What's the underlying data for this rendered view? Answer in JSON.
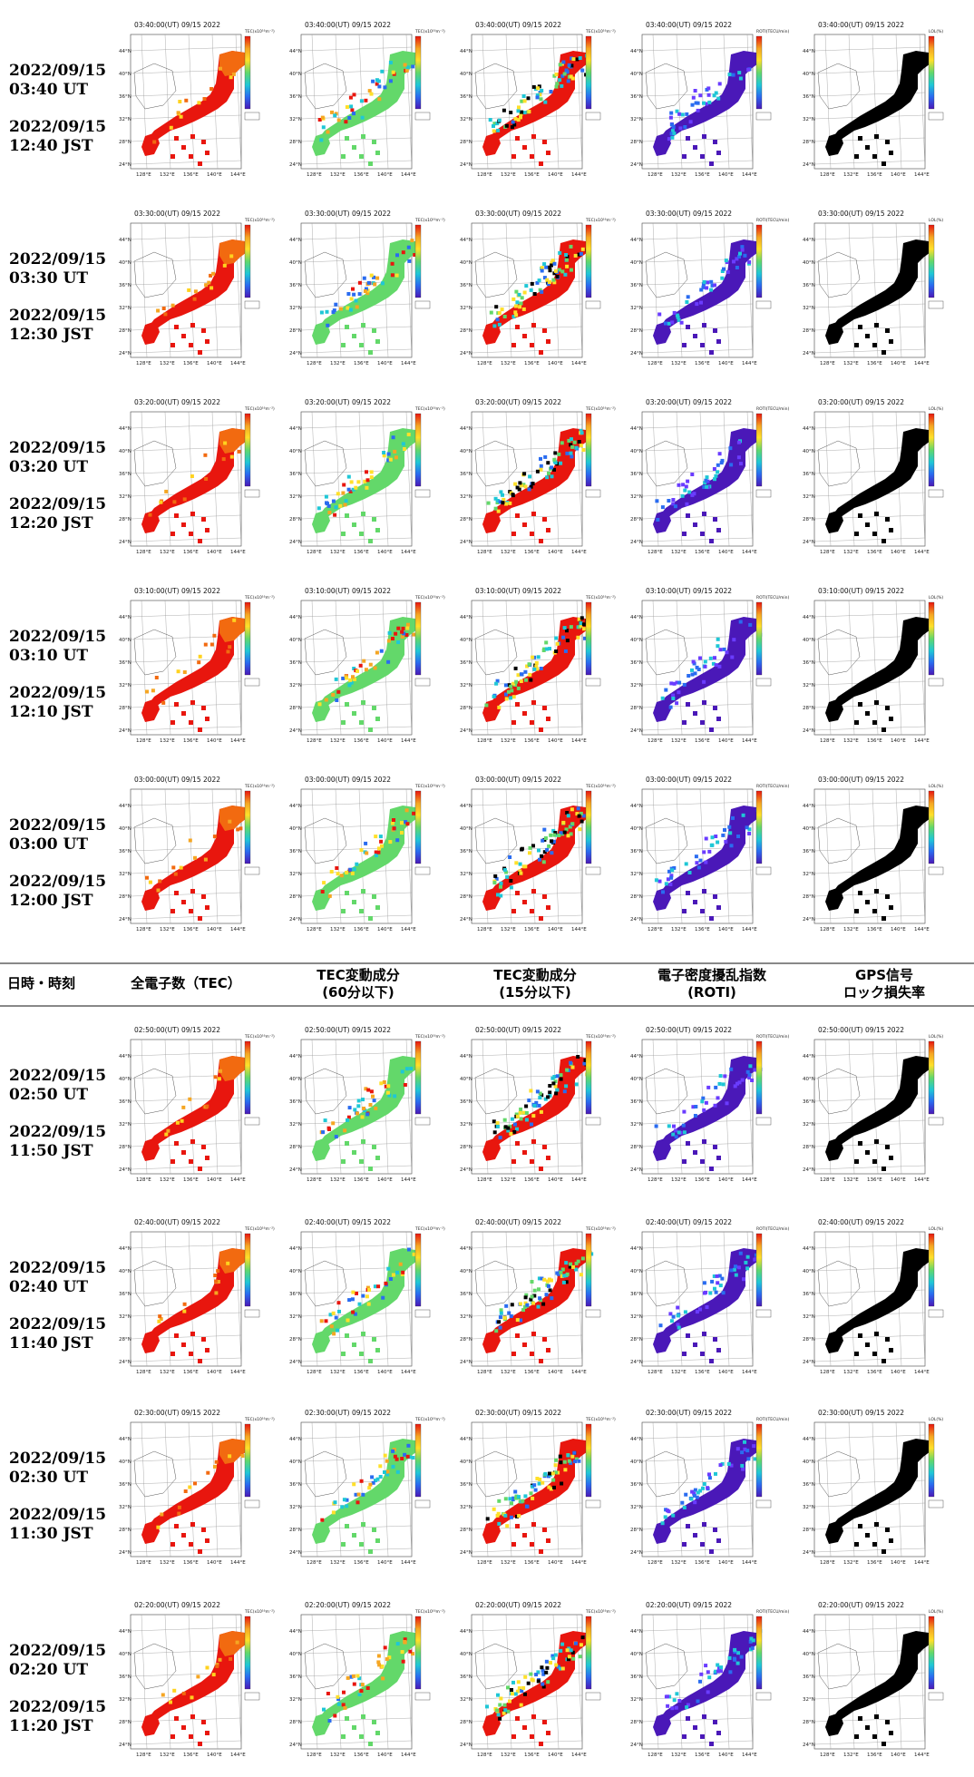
{
  "header": {
    "col0": "日時・時刻",
    "col1": "全電子数（TEC）",
    "col2_line1": "TEC変動成分",
    "col2_line2": "(60分以下)",
    "col3_line1": "TEC変動成分",
    "col3_line2": "(15分以下)",
    "col4_line1": "電子密度擾乱指数",
    "col4_line2": "(ROTI)",
    "col5_line1": "GPS信号",
    "col5_line2": "ロック損失率"
  },
  "rows": [
    {
      "ut": "2022/09/15 03:40 UT",
      "jst": "2022/09/15 12:40 JST",
      "panel_title": "03:40:00(UT) 09/15 2022"
    },
    {
      "ut": "2022/09/15 03:30 UT",
      "jst": "2022/09/15 12:30 JST",
      "panel_title": "03:30:00(UT) 09/15 2022"
    },
    {
      "ut": "2022/09/15 03:20 UT",
      "jst": "2022/09/15 12:20 JST",
      "panel_title": "03:20:00(UT) 09/15 2022"
    },
    {
      "ut": "2022/09/15 03:10 UT",
      "jst": "2022/09/15 12:10 JST",
      "panel_title": "03:10:00(UT) 09/15 2022"
    },
    {
      "ut": "2022/09/15 03:00 UT",
      "jst": "2022/09/15 12:00 JST",
      "panel_title": "03:00:00(UT) 09/15 2022"
    },
    {
      "ut": "2022/09/15 02:50 UT",
      "jst": "2022/09/15 11:50 JST",
      "panel_title": "02:50:00(UT) 09/15 2022"
    },
    {
      "ut": "2022/09/15 02:40 UT",
      "jst": "2022/09/15 11:40 JST",
      "panel_title": "02:40:00(UT) 09/15 2022"
    },
    {
      "ut": "2022/09/15 02:30 UT",
      "jst": "2022/09/15 11:30 JST",
      "panel_title": "02:30:00(UT) 09/15 2022"
    },
    {
      "ut": "2022/09/15 02:20 UT",
      "jst": "2022/09/15 11:20 JST",
      "panel_title": "02:20:00(UT) 09/15 2022"
    }
  ],
  "map": {
    "lat_ticks": [
      "44°N",
      "40°N",
      "36°N",
      "32°N",
      "28°N",
      "24°N"
    ],
    "lon_ticks": [
      "128°E",
      "132°E",
      "136°E",
      "140°E",
      "144°E"
    ],
    "units": [
      "TEC(x10¹⁶m⁻²)",
      "TEC(x10¹⁶m⁻²)",
      "TEC(x10¹⁶m⁻²)",
      "ROTI(TECU/min)",
      "LOL(%)"
    ]
  },
  "colors": {
    "tec": "#e8160e",
    "tec_north": "#f26a10",
    "dtec60_base": "#63d86a",
    "dtec15_base": "#e8160e",
    "roti_base": "#4a18b8",
    "lol_base": "#000000",
    "rule": "#888888"
  }
}
